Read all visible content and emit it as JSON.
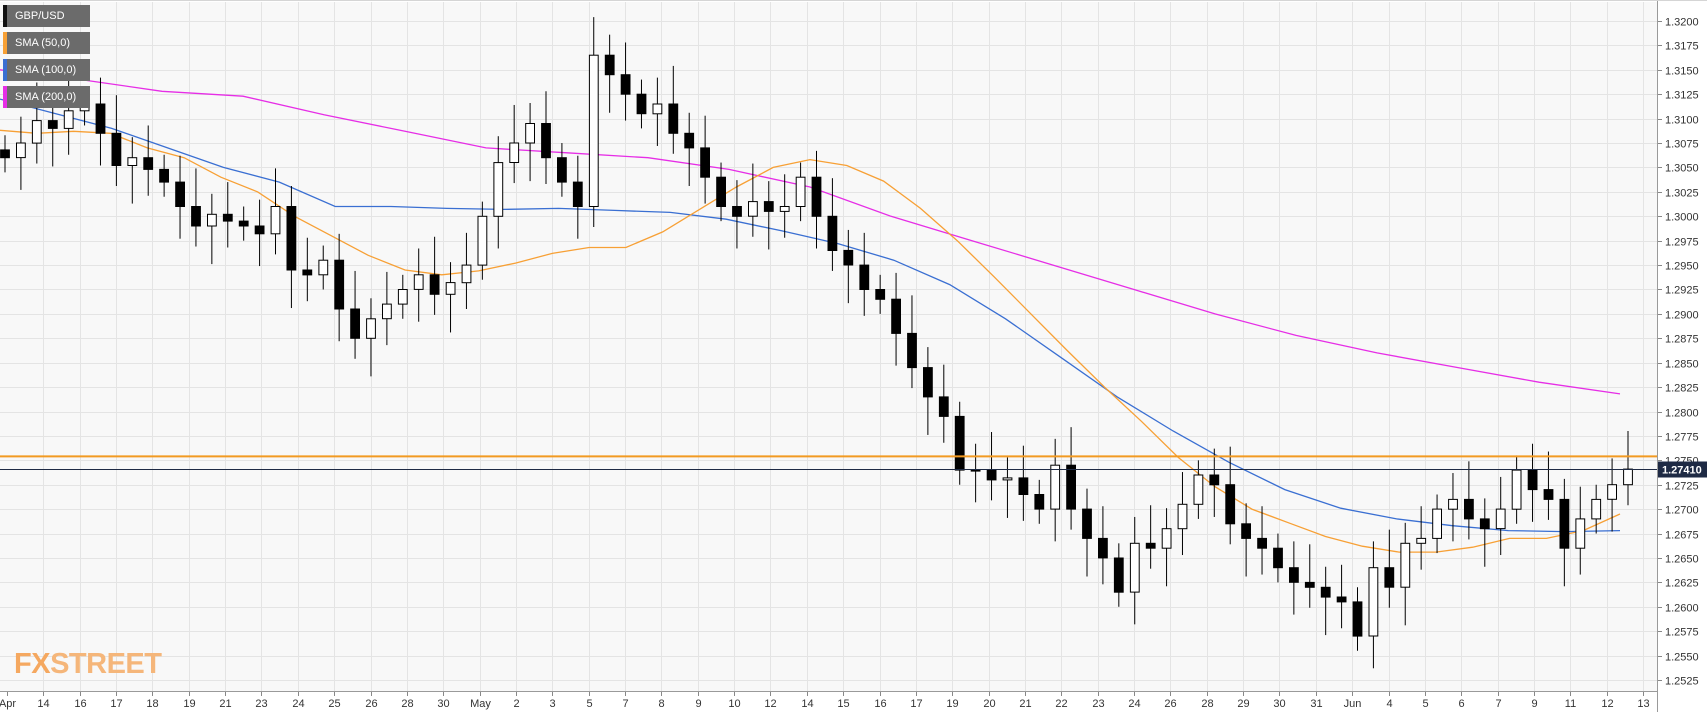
{
  "chart_data": {
    "type": "candlestick",
    "symbol": "GBP/USD",
    "last_price": "1.27410",
    "y_range": [
      1.2535,
      1.3215
    ],
    "y_ticks": [
      "1.2525",
      "1.2550",
      "1.2575",
      "1.2600",
      "1.2625",
      "1.2650",
      "1.2675",
      "1.2700",
      "1.2725",
      "1.2750",
      "1.2775",
      "1.2800",
      "1.2825",
      "1.2850",
      "1.2875",
      "1.2900",
      "1.2925",
      "1.2950",
      "1.2975",
      "1.3000",
      "1.3025",
      "1.3050",
      "1.3075",
      "1.3100",
      "1.3125",
      "1.3150",
      "1.3175",
      "1.3200"
    ],
    "x_ticks": [
      "Apr",
      "14",
      "16",
      "17",
      "18",
      "19",
      "21",
      "23",
      "24",
      "25",
      "26",
      "28",
      "30",
      "May",
      "2",
      "3",
      "5",
      "7",
      "8",
      "9",
      "10",
      "12",
      "14",
      "15",
      "16",
      "17",
      "19",
      "20",
      "21",
      "22",
      "23",
      "24",
      "26",
      "28",
      "29",
      "30",
      "31",
      "Jun",
      "4",
      "5",
      "6",
      "7",
      "9",
      "11",
      "12",
      "13"
    ],
    "legend": [
      {
        "label": "GBP/USD",
        "color": "#111111"
      },
      {
        "label": "SMA (50,0)",
        "color": "#f7a035"
      },
      {
        "label": "SMA (100,0)",
        "color": "#3a6fd2"
      },
      {
        "label": "SMA (200,0)",
        "color": "#e62ee6"
      }
    ],
    "horizontal_line": {
      "value": 1.2754,
      "color": "#f29a22"
    },
    "close_series": [
      1.306,
      1.3075,
      1.3098,
      1.309,
      1.3108,
      1.3115,
      1.3085,
      1.3052,
      1.306,
      1.3048,
      1.3035,
      1.301,
      1.299,
      1.3002,
      1.2995,
      1.299,
      1.2982,
      1.301,
      1.2945,
      1.294,
      1.2955,
      1.2905,
      1.2875,
      1.2895,
      1.291,
      1.2925,
      1.294,
      1.292,
      1.2932,
      1.295,
      1.3,
      1.3055,
      1.3075,
      1.3095,
      1.306,
      1.3035,
      1.301,
      1.3165,
      1.3145,
      1.3125,
      1.3105,
      1.3115,
      1.3085,
      1.307,
      1.304,
      1.301,
      1.3,
      1.3015,
      1.3005,
      1.301,
      1.304,
      1.3,
      1.2965,
      1.295,
      1.2925,
      1.2915,
      1.288,
      1.2845,
      1.2815,
      1.2795,
      1.274,
      1.274,
      1.273,
      1.2732,
      1.2715,
      1.27,
      1.2745,
      1.27,
      1.267,
      1.265,
      1.2615,
      1.2665,
      1.266,
      1.268,
      1.2705,
      1.2735,
      1.2725,
      1.2685,
      1.267,
      1.266,
      1.264,
      1.2625,
      1.262,
      1.261,
      1.2605,
      1.257,
      1.264,
      1.262,
      1.2665,
      1.267,
      1.27,
      1.271,
      1.269,
      1.268,
      1.27,
      1.274,
      1.272,
      1.271,
      1.266,
      1.269,
      1.271,
      1.2725,
      1.2741
    ],
    "sma50_series": [
      1.3088,
      1.3085,
      1.3087,
      1.3085,
      1.307,
      1.306,
      1.304,
      1.3025,
      1.3,
      1.298,
      1.296,
      1.2945,
      1.294,
      1.2944,
      1.2952,
      1.2962,
      1.2968,
      1.2968,
      1.2984,
      1.3007,
      1.303,
      1.305,
      1.3058,
      1.3052,
      1.3036,
      1.3008,
      1.2975,
      1.2938,
      1.29,
      1.2862,
      1.2825,
      1.279,
      1.2753,
      1.2723,
      1.27,
      1.2686,
      1.2672,
      1.2662,
      1.2656,
      1.2656,
      1.2661,
      1.267,
      1.267,
      1.2678,
      1.2695
    ],
    "sma100_series": [
      1.312,
      1.3105,
      1.309,
      1.307,
      1.305,
      1.3035,
      1.301,
      1.301,
      1.3008,
      1.3007,
      1.3008,
      1.3006,
      1.3004,
      1.2997,
      1.2985,
      1.2972,
      1.2955,
      1.293,
      1.2895,
      1.2855,
      1.2815,
      1.278,
      1.2748,
      1.272,
      1.2701,
      1.269,
      1.2683,
      1.2678,
      1.2677,
      1.2678
    ],
    "sma200_series": [
      1.315,
      1.314,
      1.3128,
      1.3123,
      1.3104,
      1.3087,
      1.307,
      1.3065,
      1.306,
      1.3048,
      1.303,
      1.3,
      1.2975,
      1.295,
      1.2925,
      1.29,
      1.2878,
      1.286,
      1.2845,
      1.283,
      1.2818
    ]
  },
  "logo": {
    "fx": "FX",
    "street": "STREET"
  }
}
